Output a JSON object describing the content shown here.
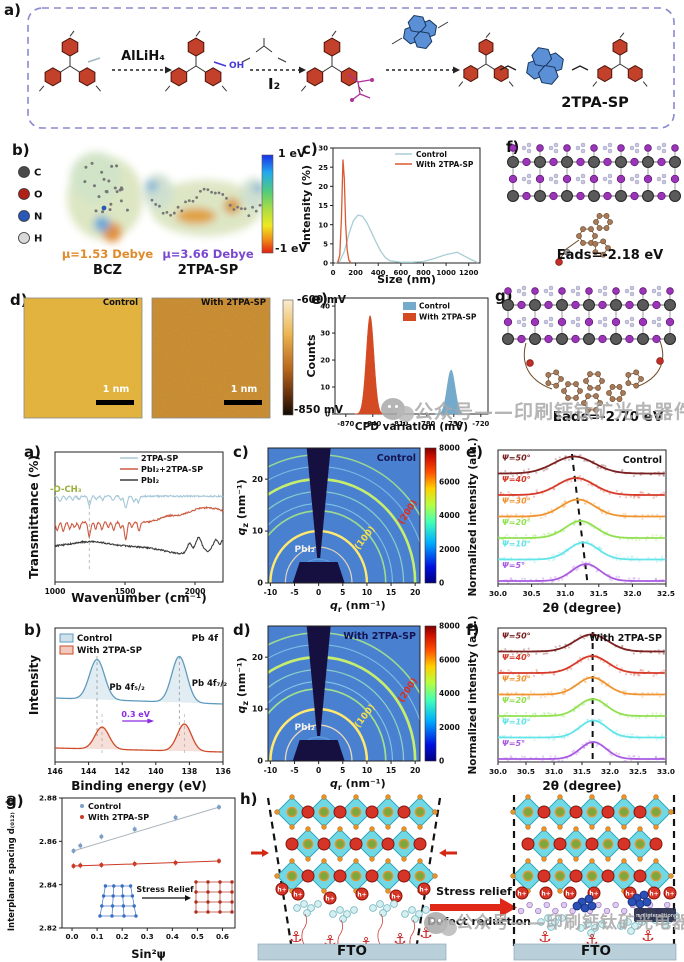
{
  "watermark": {
    "text": "公众号——印刷钙钛矿光电器件"
  },
  "fig1": {
    "labels": {
      "a": "a)",
      "b": "b)",
      "c": "c)",
      "d": "d)",
      "e": "e)",
      "f": "f)",
      "g": "g)"
    },
    "a": {
      "reagent1": "AlLiH₄",
      "reagent2": "I₂",
      "oh": "OH",
      "product": "2TPA-SP"
    },
    "b": {
      "atoms": [
        {
          "symbol": "C",
          "color": "#4a4a4a"
        },
        {
          "symbol": "O",
          "color": "#b02218"
        },
        {
          "symbol": "N",
          "color": "#2858b8"
        },
        {
          "symbol": "H",
          "color": "#d8d8d8"
        }
      ],
      "bcz_mu": "μ=1.53 Debye",
      "bcz_name": "BCZ",
      "sp_mu": "μ=3.66 Debye",
      "sp_name": "2TPA-SP",
      "scale_top": "1 eV",
      "scale_bottom": "-1 eV"
    },
    "d": {
      "left_title": "Control",
      "right_title": "With 2TPA-SP",
      "scalebar": "1 nm",
      "scale_top": "-600 mV",
      "scale_bottom": "-850 mV"
    },
    "f": {
      "eads": "Eads=-2.18 eV"
    },
    "g": {
      "eads": "Eads=-2.70 eV"
    }
  },
  "fig2": {
    "labels": {
      "a": "a)",
      "b": "b)",
      "c": "c)",
      "d": "d)",
      "e": "e)",
      "f": "f)",
      "g": "g)",
      "h": "h)"
    },
    "h": {
      "stress": "Stress relief",
      "defect": "Defect reduction",
      "fto": "FTO",
      "badge": "π-π interaction",
      "hole": "h+"
    }
  },
  "chart_data": [
    {
      "id": "dls",
      "type": "line",
      "xlabel": "Size (nm)",
      "ylabel": "Intensity (%)",
      "xlim": [
        0,
        1300
      ],
      "xticks": [
        0,
        200,
        400,
        600,
        800,
        1000,
        1200
      ],
      "ylim": [
        0,
        30
      ],
      "yticks": [
        0,
        5,
        10,
        15,
        20,
        25,
        30
      ],
      "legend_position": "top-right",
      "series": [
        {
          "name": "Control",
          "color": "#a9cdd6",
          "points": [
            [
              20,
              0
            ],
            [
              60,
              0.5
            ],
            [
              100,
              3
            ],
            [
              140,
              7.5
            ],
            [
              180,
              11
            ],
            [
              220,
              12.5
            ],
            [
              260,
              12.2
            ],
            [
              300,
              10.5
            ],
            [
              340,
              8
            ],
            [
              380,
              5.5
            ],
            [
              420,
              3.2
            ],
            [
              460,
              1.5
            ],
            [
              500,
              0.6
            ],
            [
              600,
              0.2
            ],
            [
              700,
              0.2
            ],
            [
              800,
              0.4
            ],
            [
              900,
              1.2
            ],
            [
              1000,
              2.2
            ],
            [
              1100,
              2.8
            ],
            [
              1200,
              1.2
            ],
            [
              1280,
              0.1
            ]
          ]
        },
        {
          "name": "With 2TPA-SP",
          "color": "#d85a33",
          "points": [
            [
              40,
              0
            ],
            [
              60,
              2
            ],
            [
              75,
              12
            ],
            [
              88,
              27
            ],
            [
              100,
              22
            ],
            [
              112,
              10
            ],
            [
              125,
              3.5
            ],
            [
              140,
              0.8
            ],
            [
              160,
              0
            ]
          ]
        }
      ]
    },
    {
      "id": "cpd",
      "type": "histogram",
      "xlabel": "CPD variation (mV)",
      "ylabel": "Counts",
      "xlim": [
        -882,
        -712
      ],
      "xticks": [
        -870,
        -840,
        -810,
        -780,
        -750,
        -720
      ],
      "ylim": [
        0,
        43
      ],
      "yticks": [
        0,
        10,
        20,
        30,
        40
      ],
      "peaks": [
        {
          "name": "Control",
          "color": "#74aacb",
          "center": -753,
          "sigma": 4.5,
          "height": 16.3
        },
        {
          "name": "With 2TPA-SP",
          "color": "#d44a22",
          "center": -843,
          "sigma": 4.3,
          "height": 36.5
        }
      ]
    },
    {
      "id": "ftir",
      "type": "line",
      "xlabel": "Wavenumber (cm⁻¹)",
      "ylabel": "Transmittance (%)",
      "xlim": [
        1000,
        2200
      ],
      "xticks": [
        1000,
        1500,
        2000
      ],
      "ylim": [
        0,
        100
      ],
      "annotation": {
        "text": "-O-CH₃",
        "x": 1245,
        "color": "#9ab03a"
      },
      "series": [
        {
          "name": "2TPA-SP",
          "color": "#a5c8d8",
          "base": 66,
          "features": [
            [
              1035,
              -4,
              10
            ],
            [
              1080,
              -2.5,
              8
            ],
            [
              1125,
              -3,
              9
            ],
            [
              1170,
              -2.5,
              8
            ],
            [
              1245,
              -7,
              9
            ],
            [
              1295,
              -2.5,
              8
            ],
            [
              1340,
              -3,
              8
            ],
            [
              1415,
              -3.5,
              9
            ],
            [
              1470,
              -3,
              8
            ],
            [
              1505,
              -9,
              10
            ],
            [
              1565,
              -4,
              9
            ],
            [
              1595,
              -5,
              8
            ]
          ]
        },
        {
          "name": "PbI₂+2TPA-SP",
          "color": "#cc5a40",
          "base": 46,
          "features": [
            [
              1015,
              -6,
              9
            ],
            [
              1060,
              -7,
              9
            ],
            [
              1105,
              -5,
              9
            ],
            [
              1140,
              -4,
              8
            ],
            [
              1175,
              -5,
              8
            ],
            [
              1245,
              -11,
              9
            ],
            [
              1290,
              -5,
              8
            ],
            [
              1335,
              -6,
              8
            ],
            [
              1380,
              -4,
              8
            ],
            [
              1420,
              -6,
              9
            ],
            [
              1470,
              -5,
              8
            ],
            [
              1505,
              -14,
              9
            ],
            [
              1550,
              -4,
              8
            ],
            [
              1600,
              -7,
              8
            ],
            [
              1800,
              3,
              60
            ],
            [
              2000,
              5,
              120
            ],
            [
              2150,
              8,
              140
            ]
          ]
        },
        {
          "name": "PbI₂",
          "color": "#3c3c3c",
          "base": 27,
          "features": [
            [
              1250,
              4,
              140
            ],
            [
              1900,
              -5,
              120
            ],
            [
              1960,
              7,
              16
            ],
            [
              2025,
              10,
              20
            ],
            [
              2090,
              -2,
              15
            ],
            [
              2150,
              6,
              16
            ],
            [
              2195,
              5,
              10
            ]
          ]
        }
      ]
    },
    {
      "id": "giwaxs_control",
      "type": "heatmap",
      "title": "Control",
      "xlabel_main": "q",
      "xlabel_sub": "r",
      "ylabel_main": "q",
      "ylabel_sub": "z",
      "unit": " (nm⁻¹)",
      "xlim": [
        -10.5,
        21
      ],
      "xticks": [
        -10,
        -5,
        0,
        5,
        10,
        15,
        20
      ],
      "ylim": [
        0,
        26
      ],
      "yticks": [
        0,
        10,
        20
      ],
      "cbar_ticks": [
        0,
        2000,
        4000,
        6000,
        8000
      ],
      "rings": [
        [
          4.6,
          1,
          "#78c4e8",
          0.5
        ],
        [
          6.9,
          1.2,
          "#f0ddb8",
          0.9
        ],
        [
          10,
          2.4,
          "#ffe96e",
          1
        ],
        [
          13.9,
          1.6,
          "#a6e688",
          0.9
        ],
        [
          15.3,
          1.1,
          "#8fd8e8",
          0.75
        ],
        [
          17.6,
          1.3,
          "#96dcc4",
          0.8
        ],
        [
          20,
          2.6,
          "#c6ee6e",
          1
        ],
        [
          22.4,
          1.1,
          "#8fd0e8",
          0.7
        ],
        [
          24.7,
          1.5,
          "#a4e68c",
          0.85
        ]
      ],
      "ring_labels": {
        "inner": "PbI₂",
        "mid": "(100)",
        "outer": "(200)"
      },
      "ring_label_colors": {
        "inner": "#f2f2f2",
        "mid": "#f3e04a",
        "outer": "#d83020"
      }
    },
    {
      "id": "giwaxs_sp",
      "type": "heatmap",
      "title": "With 2TPA-SP",
      "xlabel_main": "q",
      "xlabel_sub": "r",
      "ylabel_main": "q",
      "ylabel_sub": "z",
      "unit": " (nm⁻¹)",
      "xlim": [
        -10.5,
        21
      ],
      "xticks": [
        -10,
        -5,
        0,
        5,
        10,
        15,
        20
      ],
      "ylim": [
        0,
        26
      ],
      "yticks": [
        0,
        10,
        20
      ],
      "cbar_ticks": [
        0,
        2000,
        4000,
        6000,
        8000
      ],
      "rings": [
        [
          4.6,
          1,
          "#78c4e8",
          0.5
        ],
        [
          6.9,
          1.3,
          "#f0ddb8",
          0.95
        ],
        [
          10,
          2.5,
          "#ffe96e",
          1
        ],
        [
          13.9,
          1.7,
          "#a6e688",
          0.95
        ],
        [
          15.3,
          1.1,
          "#8fd8e8",
          0.8
        ],
        [
          17.6,
          1.3,
          "#96dcc4",
          0.85
        ],
        [
          20,
          2.7,
          "#c6ee6e",
          1
        ],
        [
          22.4,
          1.1,
          "#8fd0e8",
          0.75
        ],
        [
          24.7,
          1.6,
          "#a4e68c",
          0.9
        ]
      ],
      "ring_labels": {
        "inner": "PbI₂",
        "mid": "(100)",
        "outer": "(200)"
      },
      "ring_label_colors": {
        "inner": "#f2f2f2",
        "mid": "#f3e04a",
        "outer": "#d83020"
      }
    },
    {
      "id": "xrd_control",
      "type": "line",
      "title": "Control",
      "xlabel": "2θ (degree)",
      "ylabel": "Normalized intensity (a.u.)",
      "xlim": [
        30,
        32.5
      ],
      "xticks": [
        "30.0",
        "30.5",
        "31.0",
        "31.5",
        "32.0",
        "32.5"
      ],
      "curves": [
        {
          "label": "Ψ=50°",
          "color": "#7a2020",
          "center": 31.13,
          "sigma": 0.3
        },
        {
          "label": "Ψ=40°",
          "color": "#d63a28",
          "center": 31.16,
          "sigma": 0.27
        },
        {
          "label": "Ψ=30°",
          "color": "#ef9430",
          "center": 31.19,
          "sigma": 0.25
        },
        {
          "label": "Ψ=20°",
          "color": "#90e050",
          "center": 31.23,
          "sigma": 0.23
        },
        {
          "label": "Ψ=10°",
          "color": "#62e4e8",
          "center": 31.27,
          "sigma": 0.22
        },
        {
          "label": "Ψ=5°",
          "color": "#a85ae0",
          "center": 31.31,
          "sigma": 0.21
        }
      ],
      "dash": {
        "top": 31.1,
        "bottom": 31.33
      }
    },
    {
      "id": "xrd_sp",
      "type": "line",
      "title": "With 2TPA-SP",
      "xlabel": "2θ (degree)",
      "ylabel": "Normalized intensity (a.u.)",
      "xlim": [
        30,
        33
      ],
      "xticks": [
        "30.0",
        "30.5",
        "31.0",
        "31.5",
        "32.0",
        "32.5",
        "33.0"
      ],
      "curves": [
        {
          "label": "Ψ=50°",
          "color": "#7a2020",
          "center": 31.67,
          "sigma": 0.3
        },
        {
          "label": "Ψ=40°",
          "color": "#d63a28",
          "center": 31.68,
          "sigma": 0.28
        },
        {
          "label": "Ψ=30°",
          "color": "#ef9430",
          "center": 31.68,
          "sigma": 0.26
        },
        {
          "label": "Ψ=20°",
          "color": "#90e050",
          "center": 31.69,
          "sigma": 0.25
        },
        {
          "label": "Ψ=10°",
          "color": "#62e4e8",
          "center": 31.7,
          "sigma": 0.24
        },
        {
          "label": "Ψ=5°",
          "color": "#a85ae0",
          "center": 31.7,
          "sigma": 0.23
        }
      ],
      "dash": {
        "top": 31.69,
        "bottom": 31.69
      }
    },
    {
      "id": "xps",
      "type": "line",
      "corner": "Pb 4f",
      "xlabel": "Binding energy (eV)",
      "ylabel": "Intensity",
      "xlim": [
        146,
        136
      ],
      "xticks": [
        146,
        144,
        142,
        140,
        138,
        136
      ],
      "legend": [
        {
          "name": "Control",
          "color": "#5f9bbd"
        },
        {
          "name": "With 2TPA-SP",
          "color": "#cf4b28"
        }
      ],
      "control": {
        "centers": [
          143.5,
          138.6
        ],
        "amps": [
          40,
          46
        ],
        "sigma": 0.45
      },
      "treated": {
        "centers": [
          143.2,
          138.3
        ],
        "amps": [
          22,
          27
        ],
        "sigma": 0.42
      },
      "peak_labels": [
        "Pb 4f₅/₂",
        "Pb 4f₇/₂"
      ],
      "shift_label": "0.3 eV",
      "shift_color": "#8a2be2"
    },
    {
      "id": "stress",
      "type": "scatter",
      "xlabel": "Sin²ψ",
      "ylabel": "Interplanar spacing d₍₀₁₂₎ (Å)",
      "xlim": [
        -0.04,
        0.65
      ],
      "xticks": [
        0.0,
        0.1,
        0.2,
        0.3,
        0.4,
        0.5,
        0.6
      ],
      "ylim": [
        2.82,
        2.88
      ],
      "yticks": [
        "2.82",
        "2.84",
        "2.86",
        "2.88"
      ],
      "inset_label": "Stress Relief",
      "series": [
        {
          "name": "Control",
          "color": "#7b9fc7",
          "line": "#aab4bc",
          "points": [
            [
              0.006,
              2.8556
            ],
            [
              0.033,
              2.858
            ],
            [
              0.117,
              2.8622
            ],
            [
              0.25,
              2.8656
            ],
            [
              0.413,
              2.871
            ],
            [
              0.586,
              2.8758
            ]
          ]
        },
        {
          "name": "With 2TPA-SP",
          "color": "#cc3a26",
          "line": "#cc3a26",
          "points": [
            [
              0.006,
              2.8486
            ],
            [
              0.033,
              2.8489
            ],
            [
              0.117,
              2.8491
            ],
            [
              0.25,
              2.8496
            ],
            [
              0.413,
              2.8501
            ],
            [
              0.586,
              2.8509
            ]
          ]
        }
      ]
    }
  ]
}
